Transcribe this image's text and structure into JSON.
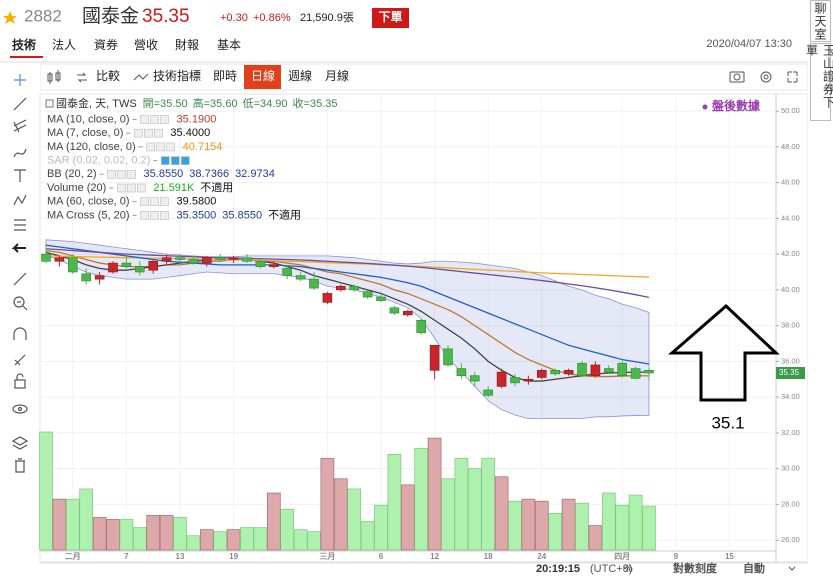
{
  "header": {
    "code": "2882",
    "name": "國泰金",
    "price": "35.35",
    "change": "+0.30",
    "change_pct": "+0.86%",
    "volume": "21,590.9張",
    "order_button": "下單",
    "datetime": "2020/04/07 13:30"
  },
  "tabs": [
    "技術",
    "法人",
    "資券",
    "營收",
    "財報",
    "基本"
  ],
  "toolbar": {
    "buttons": [
      "比較",
      "技術指標",
      "即時",
      "日線",
      "週線",
      "月線"
    ],
    "active": "日線"
  },
  "side": [
    "聊天室",
    "玉山證券下單"
  ],
  "status": {
    "clock": "20:19:15",
    "timezone": "(UTC+8)",
    "percent": "%",
    "log_scale": "對數刻度",
    "auto": "自動"
  },
  "chart_data": {
    "type": "candlestick",
    "watermark": "盤後數據",
    "annotation": "35.1",
    "symbol_label": "國泰金, 天, TWS",
    "ohlc_labels": [
      "開=35.50",
      "高=35.60",
      "低=34.90",
      "收=35.35"
    ],
    "up_color": "#c8262a",
    "down_color": "#4cb84c",
    "up_volume_color": "#dca8aa",
    "down_volume_color": "#aef0ae",
    "grid": true,
    "ylim": [
      25.45,
      50.9
    ],
    "yticks": [
      {
        "value": 26,
        "label": "26.00"
      },
      {
        "value": 28,
        "label": "28.00"
      },
      {
        "value": 30,
        "label": "30.00"
      },
      {
        "value": 32,
        "label": "32.00"
      },
      {
        "value": 34,
        "label": "34.00"
      },
      {
        "value": 36,
        "label": "36.00"
      },
      {
        "value": 38,
        "label": "38.00"
      },
      {
        "value": 40,
        "label": "40.00"
      },
      {
        "value": 42,
        "label": "42.00"
      },
      {
        "value": 44,
        "label": "44.00"
      },
      {
        "value": 46,
        "label": "46.00"
      },
      {
        "value": 48,
        "label": "48.00"
      },
      {
        "value": 50,
        "label": "50.00"
      }
    ],
    "categories": [
      null,
      null,
      "二月",
      null,
      null,
      null,
      "7",
      null,
      null,
      null,
      "13",
      null,
      null,
      null,
      "19",
      null,
      null,
      null,
      null,
      null,
      null,
      "三月",
      null,
      null,
      null,
      "6",
      null,
      null,
      null,
      "12",
      null,
      null,
      null,
      "18",
      null,
      null,
      null,
      "24",
      null,
      null,
      null,
      null,
      null,
      "四月",
      null,
      null,
      null,
      "9",
      null,
      null,
      null,
      "15"
    ],
    "open": [
      42.0,
      41.6,
      41.8,
      40.9,
      40.6,
      41.0,
      41.5,
      41.3,
      41.1,
      41.6,
      41.8,
      41.7,
      41.5,
      41.8,
      41.7,
      41.8,
      41.6,
      41.3,
      41.2,
      40.8,
      40.6,
      39.3,
      40.0,
      40.2,
      39.9,
      39.6,
      39.0,
      38.6,
      38.3,
      35.5,
      36.7,
      35.6,
      35.2,
      34.4,
      34.6,
      35.1,
      34.9,
      35.1,
      35.5,
      35.3,
      35.9,
      35.2,
      35.6,
      35.9,
      35.6,
      35.5,
      null,
      null,
      null,
      null,
      null,
      null
    ],
    "high": [
      42.6,
      41.9,
      42.0,
      41.2,
      41.0,
      41.6,
      41.9,
      41.6,
      41.7,
      42.0,
      42.0,
      41.9,
      41.9,
      42.0,
      41.9,
      42.0,
      41.7,
      41.6,
      41.4,
      41.0,
      41.0,
      39.9,
      40.3,
      40.3,
      40.0,
      39.8,
      39.1,
      38.9,
      38.4,
      36.9,
      36.9,
      35.9,
      35.4,
      34.6,
      35.6,
      35.3,
      35.2,
      35.6,
      35.6,
      35.6,
      36.0,
      36.0,
      35.8,
      36.0,
      35.7,
      35.6,
      null,
      null,
      null,
      null,
      null,
      null
    ],
    "low": [
      41.5,
      41.3,
      40.9,
      40.3,
      40.3,
      40.9,
      41.2,
      40.8,
      40.9,
      41.4,
      41.5,
      41.4,
      41.3,
      41.6,
      41.5,
      41.5,
      41.2,
      41.2,
      40.6,
      40.5,
      40.0,
      39.2,
      39.9,
      39.9,
      39.5,
      39.3,
      38.6,
      38.5,
      37.5,
      35.0,
      35.7,
      35.0,
      34.6,
      34.0,
      34.5,
      34.6,
      34.7,
      35.0,
      35.2,
      35.2,
      35.1,
      35.1,
      35.3,
      35.1,
      35.0,
      34.9,
      null,
      null,
      null,
      null,
      null,
      null
    ],
    "close": [
      41.6,
      41.8,
      41.0,
      40.5,
      40.8,
      41.5,
      41.3,
      41.0,
      41.6,
      41.8,
      41.7,
      41.5,
      41.8,
      41.7,
      41.8,
      41.6,
      41.3,
      41.4,
      40.8,
      40.6,
      40.1,
      39.8,
      40.2,
      40.0,
      39.6,
      39.4,
      38.7,
      38.8,
      37.6,
      36.9,
      35.8,
      35.2,
      34.9,
      34.1,
      35.4,
      34.8,
      35.0,
      35.5,
      35.3,
      35.5,
      35.2,
      35.8,
      35.4,
      35.2,
      35.05,
      35.35,
      null,
      null,
      null,
      null,
      null,
      null
    ],
    "volume": [
      58,
      25,
      25,
      30,
      16,
      15,
      15,
      11,
      17,
      17,
      16,
      7,
      10,
      9,
      10,
      11,
      11,
      28,
      20,
      10,
      9,
      45,
      35,
      30,
      14,
      22,
      47,
      32,
      50,
      55,
      35,
      45,
      40,
      45,
      36,
      24,
      25,
      24,
      18,
      25,
      23,
      12,
      28,
      22,
      27,
      21.591,
      null,
      null,
      null,
      null,
      null,
      null
    ],
    "indicators": [
      {
        "name": "MA (10, close, 0)",
        "color": "#c07830",
        "labels": [
          "35.1900"
        ],
        "label_colors": [
          "#c0392b"
        ],
        "values": [
          42.2,
          42.1,
          41.9,
          41.7,
          41.5,
          41.4,
          41.3,
          41.3,
          41.3,
          41.4,
          41.4,
          41.5,
          41.6,
          41.6,
          41.7,
          41.7,
          41.6,
          41.6,
          41.5,
          41.4,
          41.2,
          41.0,
          40.9,
          40.7,
          40.5,
          40.3,
          40.0,
          39.8,
          39.5,
          39.2,
          38.9,
          38.5,
          38.0,
          37.5,
          37.0,
          36.5,
          36.1,
          35.8,
          35.5,
          35.3,
          35.2,
          35.15,
          35.15,
          35.18,
          35.2,
          35.19,
          null,
          null,
          null,
          null,
          null,
          null
        ]
      },
      {
        "name": "MA (7, close, 0)",
        "color": "#444444",
        "labels": [
          "35.4000"
        ],
        "label_colors": [
          "#111111"
        ],
        "values": [
          42.1,
          41.9,
          41.7,
          41.4,
          41.2,
          41.1,
          41.1,
          41.2,
          41.3,
          41.4,
          41.5,
          41.6,
          41.7,
          41.7,
          41.7,
          41.7,
          41.6,
          41.5,
          41.3,
          41.1,
          40.8,
          40.6,
          40.4,
          40.2,
          40.0,
          39.8,
          39.5,
          39.2,
          38.8,
          38.3,
          37.8,
          37.3,
          36.7,
          36.0,
          35.5,
          35.1,
          34.9,
          34.9,
          35.0,
          35.1,
          35.2,
          35.3,
          35.35,
          35.38,
          35.4,
          35.4,
          null,
          null,
          null,
          null,
          null,
          null
        ]
      },
      {
        "name": "MA (120, close, 0)",
        "color": "#f5a623",
        "labels": [
          "40.7154"
        ],
        "label_colors": [
          "#e8961a"
        ],
        "values": [
          41.9,
          41.88,
          41.86,
          41.85,
          41.83,
          41.82,
          41.8,
          41.79,
          41.77,
          41.76,
          41.74,
          41.73,
          41.71,
          41.7,
          41.68,
          41.67,
          41.65,
          41.63,
          41.6,
          41.58,
          41.55,
          41.52,
          41.5,
          41.47,
          41.44,
          41.41,
          41.38,
          41.34,
          41.31,
          41.27,
          41.23,
          41.19,
          41.15,
          41.11,
          41.07,
          41.03,
          40.99,
          40.95,
          40.92,
          40.89,
          40.86,
          40.83,
          40.8,
          40.77,
          40.74,
          40.7154,
          null,
          null,
          null,
          null,
          null,
          null
        ]
      },
      {
        "name": "SAR (0.02, 0.02, 0.2)",
        "color": "#bbbbbb",
        "labels": [],
        "label_colors": []
      },
      {
        "name": "BB (20, 2)",
        "color": "#1f5fd0",
        "band_color": "#8a94d8",
        "labels": [
          "35.8550",
          "38.7366",
          "32.9734"
        ],
        "label_colors": [
          "#1f3da0",
          "#1f3da0",
          "#1f3da0"
        ],
        "middle": [
          42.5,
          42.4,
          42.3,
          42.2,
          42.1,
          42.0,
          41.9,
          41.8,
          41.7,
          41.6,
          41.55,
          41.5,
          41.45,
          41.4,
          41.4,
          41.4,
          41.4,
          41.4,
          41.35,
          41.3,
          41.2,
          41.1,
          41.0,
          40.9,
          40.8,
          40.7,
          40.55,
          40.4,
          40.2,
          39.9,
          39.6,
          39.3,
          39.0,
          38.7,
          38.4,
          38.1,
          37.8,
          37.5,
          37.2,
          36.9,
          36.7,
          36.5,
          36.3,
          36.1,
          35.98,
          35.855,
          null,
          null,
          null,
          null,
          null,
          null
        ],
        "upper": [
          42.8,
          42.75,
          42.7,
          42.6,
          42.5,
          42.4,
          42.3,
          42.2,
          42.1,
          42.0,
          41.95,
          41.9,
          41.85,
          41.85,
          41.85,
          41.9,
          41.9,
          41.9,
          41.9,
          41.9,
          41.9,
          41.9,
          41.85,
          41.8,
          41.7,
          41.6,
          41.5,
          41.45,
          41.5,
          41.6,
          41.6,
          41.55,
          41.5,
          41.4,
          41.3,
          41.2,
          41.0,
          40.8,
          40.5,
          40.2,
          40.0,
          39.7,
          39.5,
          39.2,
          39.0,
          38.7366,
          null,
          null,
          null,
          null,
          null,
          null
        ],
        "lower": [
          41.9,
          41.7,
          41.3,
          41.0,
          40.8,
          40.7,
          40.6,
          40.6,
          40.6,
          40.7,
          40.8,
          40.9,
          41.0,
          40.95,
          40.9,
          40.9,
          40.9,
          40.9,
          40.8,
          40.7,
          40.5,
          40.2,
          40.1,
          40.0,
          39.8,
          39.6,
          39.3,
          39.0,
          38.4,
          37.3,
          36.2,
          35.4,
          34.6,
          33.8,
          33.3,
          33.0,
          32.8,
          32.8,
          32.8,
          32.8,
          32.8,
          32.9,
          32.9,
          32.95,
          32.97,
          32.9734,
          null,
          null,
          null,
          null,
          null,
          null
        ]
      },
      {
        "name": "Volume (20)",
        "color": "#19b219",
        "labels": [
          "21.591K",
          "不適用"
        ],
        "label_colors": [
          "#19b219",
          "#111111"
        ]
      },
      {
        "name": "MA (60, close, 0)",
        "color": "#6b4f9e",
        "labels": [
          "39.5800"
        ],
        "label_colors": [
          "#111111"
        ],
        "values": [
          42.3,
          42.25,
          42.2,
          42.15,
          42.1,
          42.05,
          42.0,
          41.97,
          41.94,
          41.91,
          41.88,
          41.85,
          41.82,
          41.8,
          41.78,
          41.76,
          41.74,
          41.72,
          41.7,
          41.67,
          41.64,
          41.6,
          41.56,
          41.52,
          41.48,
          41.43,
          41.38,
          41.32,
          41.26,
          41.18,
          41.1,
          41.02,
          40.94,
          40.86,
          40.78,
          40.7,
          40.61,
          40.52,
          40.43,
          40.33,
          40.23,
          40.12,
          40.0,
          39.87,
          39.73,
          39.58,
          null,
          null,
          null,
          null,
          null,
          null
        ]
      },
      {
        "name": "MA Cross (5, 20)",
        "color": "#1f3da0",
        "labels": [
          "35.3500",
          "35.8550",
          "不適用"
        ],
        "label_colors": [
          "#1f3da0",
          "#1f3da0",
          "#111111"
        ]
      }
    ]
  }
}
